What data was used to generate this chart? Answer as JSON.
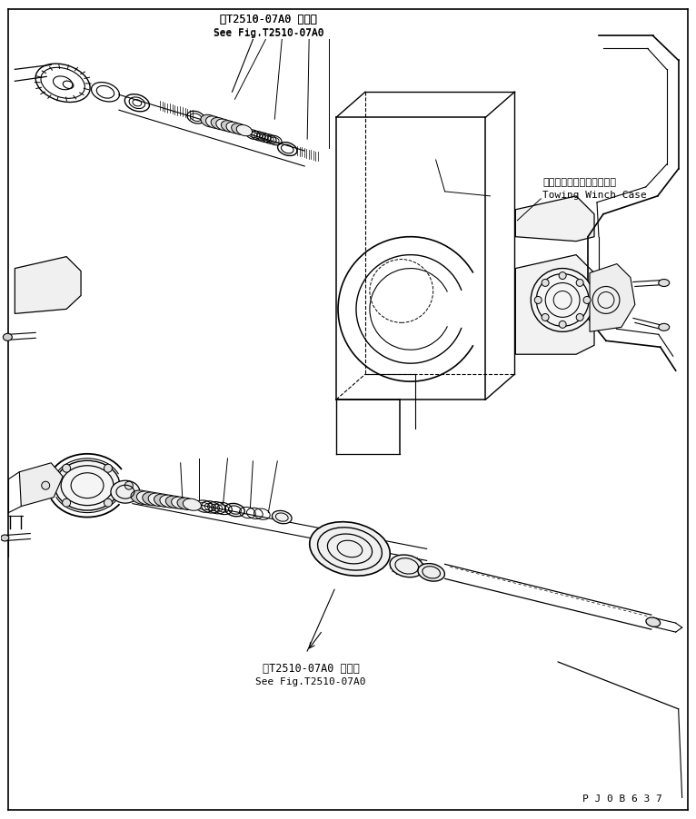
{
  "bg_color": "#ffffff",
  "line_color": "#000000",
  "text_color": "#000000",
  "fig_width": 7.66,
  "fig_height": 9.02,
  "dpi": 100,
  "label_top1_jp": "第T2510-07A0 図参照",
  "label_top1_en": "See Fig.T2510-07A0",
  "label_top2_jp": "トーイングウィンチケース",
  "label_top2_en": "Towing Winch Case",
  "label_bot1_jp": "第T2510-07A0 図参照",
  "label_bot1_en": "See Fig.T2510-07A0",
  "label_pjob": "P J 0 B 6 3 7"
}
